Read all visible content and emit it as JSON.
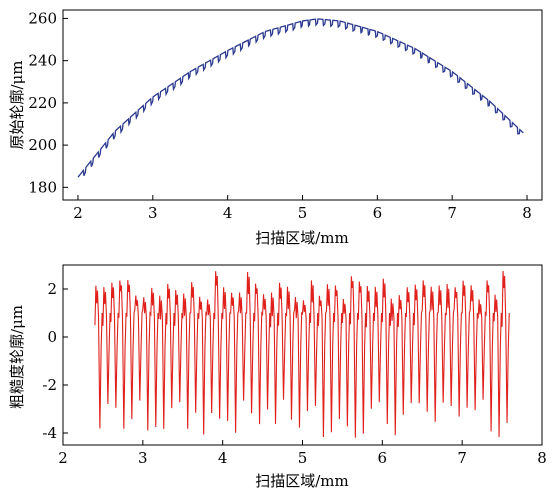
{
  "chart_data": [
    {
      "type": "line",
      "title": "",
      "xlabel": "扫描区域/mm",
      "ylabel": "原始轮廓/μm",
      "xlim": [
        1.8,
        8.2
      ],
      "ylim": [
        174,
        264
      ],
      "xticks": [
        2,
        3,
        4,
        5,
        6,
        7,
        8
      ],
      "yticks": [
        180,
        200,
        220,
        240,
        260
      ],
      "grid": false,
      "legend": "none",
      "color": "#2b3990",
      "series": [
        {
          "x": [
            2.0,
            2.5,
            3.0,
            3.5,
            4.0,
            4.5,
            5.0,
            5.2,
            5.5,
            6.0,
            6.5,
            7.0,
            7.5,
            7.95
          ],
          "values": [
            184,
            206,
            222,
            234,
            244,
            253,
            258,
            259,
            258,
            253,
            245,
            234,
            220,
            205
          ]
        }
      ]
    },
    {
      "type": "line",
      "title": "",
      "xlabel": "扫描区域/mm",
      "ylabel": "粗糙度轮廓/μm",
      "xlim": [
        2.0,
        8.0
      ],
      "ylim": [
        -4.5,
        3.0
      ],
      "xticks": [
        2,
        3,
        4,
        5,
        6,
        7,
        8
      ],
      "yticks": [
        -4,
        -2,
        0,
        2
      ],
      "grid": false,
      "legend": "none",
      "color": "#e0201b",
      "series": [
        {
          "x_range": [
            2.4,
            7.6
          ],
          "period_mm": 0.1,
          "peak_range": [
            1.5,
            2.8
          ],
          "valley_range": [
            -4.2,
            -2.6
          ]
        }
      ]
    }
  ]
}
